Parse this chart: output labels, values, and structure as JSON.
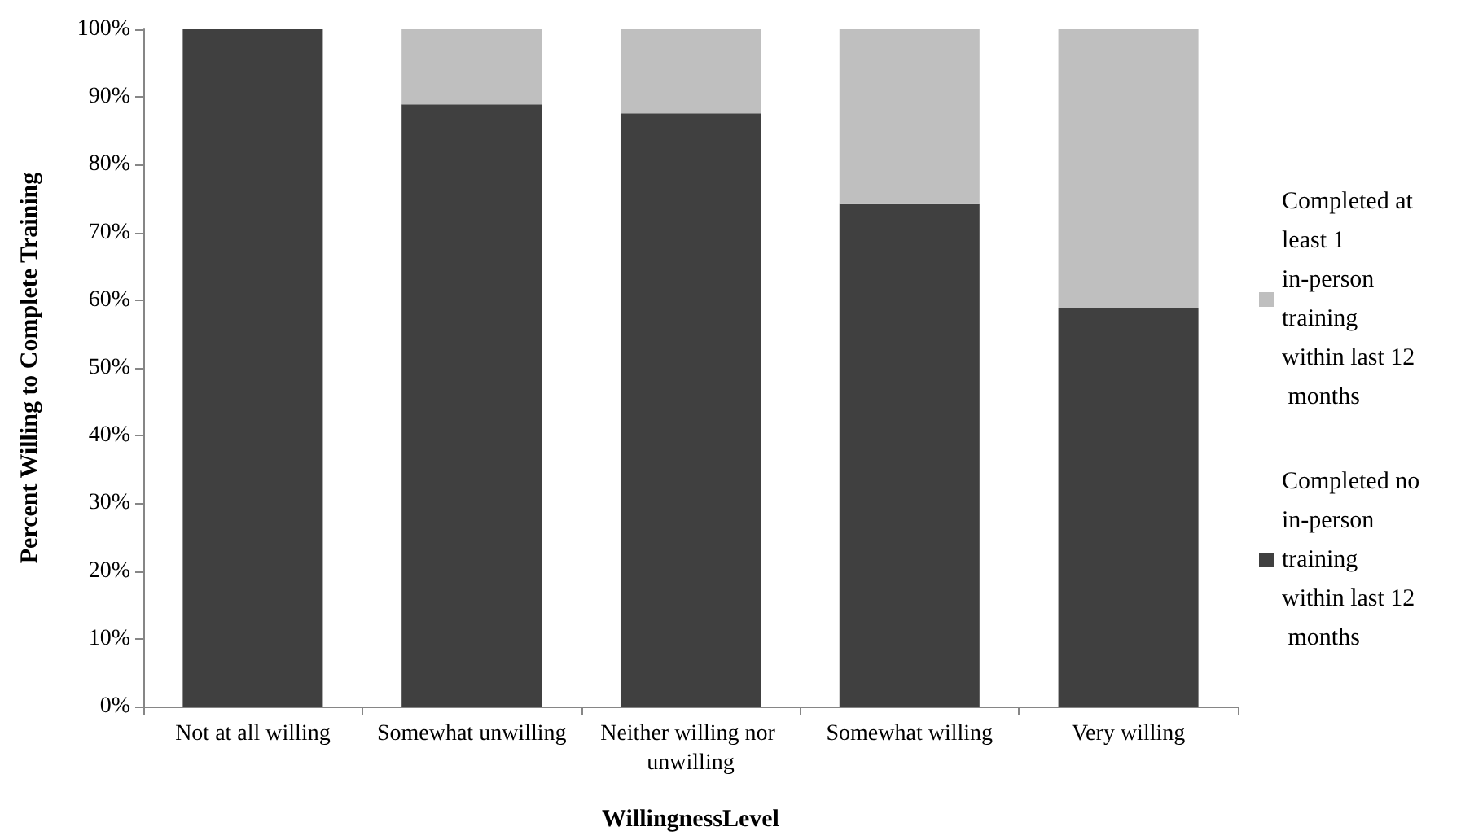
{
  "chart_data": {
    "type": "bar",
    "stacked": true,
    "xlabel": "WillingnessLevel",
    "ylabel": "Percent Willing to Complete Training",
    "categories": [
      "Not at all willing",
      "Somewhat unwilling",
      "Neither willing nor unwilling",
      "Somewhat willing",
      "Very willing"
    ],
    "series": [
      {
        "name": "Completed no in-person training within last 12 months",
        "color": "#404040",
        "values": [
          100,
          88.9,
          87.6,
          74.2,
          58.9
        ]
      },
      {
        "name": "Completed at least 1 in-person training within last 12 months",
        "color": "#bfbfbf",
        "values": [
          0,
          11.1,
          12.4,
          25.8,
          41.1
        ]
      }
    ],
    "ylim": [
      0,
      100
    ],
    "yticks": [
      {
        "value": 0,
        "label": "0%"
      },
      {
        "value": 10,
        "label": "10%"
      },
      {
        "value": 20,
        "label": "20%"
      },
      {
        "value": 30,
        "label": "30%"
      },
      {
        "value": 40,
        "label": "40%"
      },
      {
        "value": 50,
        "label": "50%"
      },
      {
        "value": 60,
        "label": "60%"
      },
      {
        "value": 70,
        "label": "70%"
      },
      {
        "value": 80,
        "label": "80%"
      },
      {
        "value": 90,
        "label": "90%"
      },
      {
        "value": 100,
        "label": "100%"
      }
    ],
    "grid": false,
    "legend": "right"
  }
}
